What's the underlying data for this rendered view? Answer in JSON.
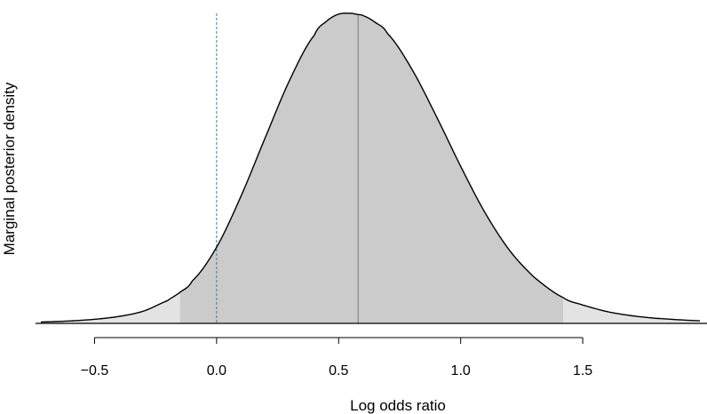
{
  "chart_data": {
    "type": "area",
    "xlabel": "Log odds ratio",
    "ylabel": "Marginal posterior density",
    "xlim": [
      -0.72,
      1.98
    ],
    "x_ticks": [
      -0.5,
      0.0,
      0.5,
      1.0,
      1.5
    ],
    "x_tick_labels": [
      "−0.5",
      "0.0",
      "0.5",
      "1.0",
      "1.5"
    ],
    "y_axis_ticks_shown": false,
    "grid": false,
    "density": {
      "x": [
        -0.72,
        -0.6,
        -0.5,
        -0.4,
        -0.3,
        -0.2,
        -0.15,
        -0.1,
        0.0,
        0.1,
        0.2,
        0.3,
        0.4,
        0.45,
        0.5,
        0.55,
        0.58,
        0.6,
        0.65,
        0.7,
        0.8,
        0.9,
        1.0,
        1.1,
        1.2,
        1.3,
        1.42,
        1.5,
        1.6,
        1.7,
        1.8,
        1.98
      ],
      "y": [
        0.0045,
        0.0079,
        0.0132,
        0.0224,
        0.0395,
        0.0737,
        0.1003,
        0.1367,
        0.2458,
        0.4104,
        0.6005,
        0.7857,
        0.9289,
        0.9743,
        0.9974,
        1.0,
        0.9962,
        0.9925,
        0.9708,
        0.9345,
        0.8199,
        0.6682,
        0.5065,
        0.3567,
        0.2358,
        0.1495,
        0.0831,
        0.0592,
        0.038,
        0.0247,
        0.0163,
        0.0085
      ]
    },
    "credible_interval": [
      -0.15,
      1.42
    ],
    "posterior_mean": 0.58,
    "reference_line_x": 0.0,
    "colors": {
      "interval_fill": "#cbcbcb",
      "tail_fill": "#e3e3e3",
      "curve": "#000000",
      "mean_line": "#8c8c8c",
      "reference_line": "#3b7ea1"
    }
  }
}
